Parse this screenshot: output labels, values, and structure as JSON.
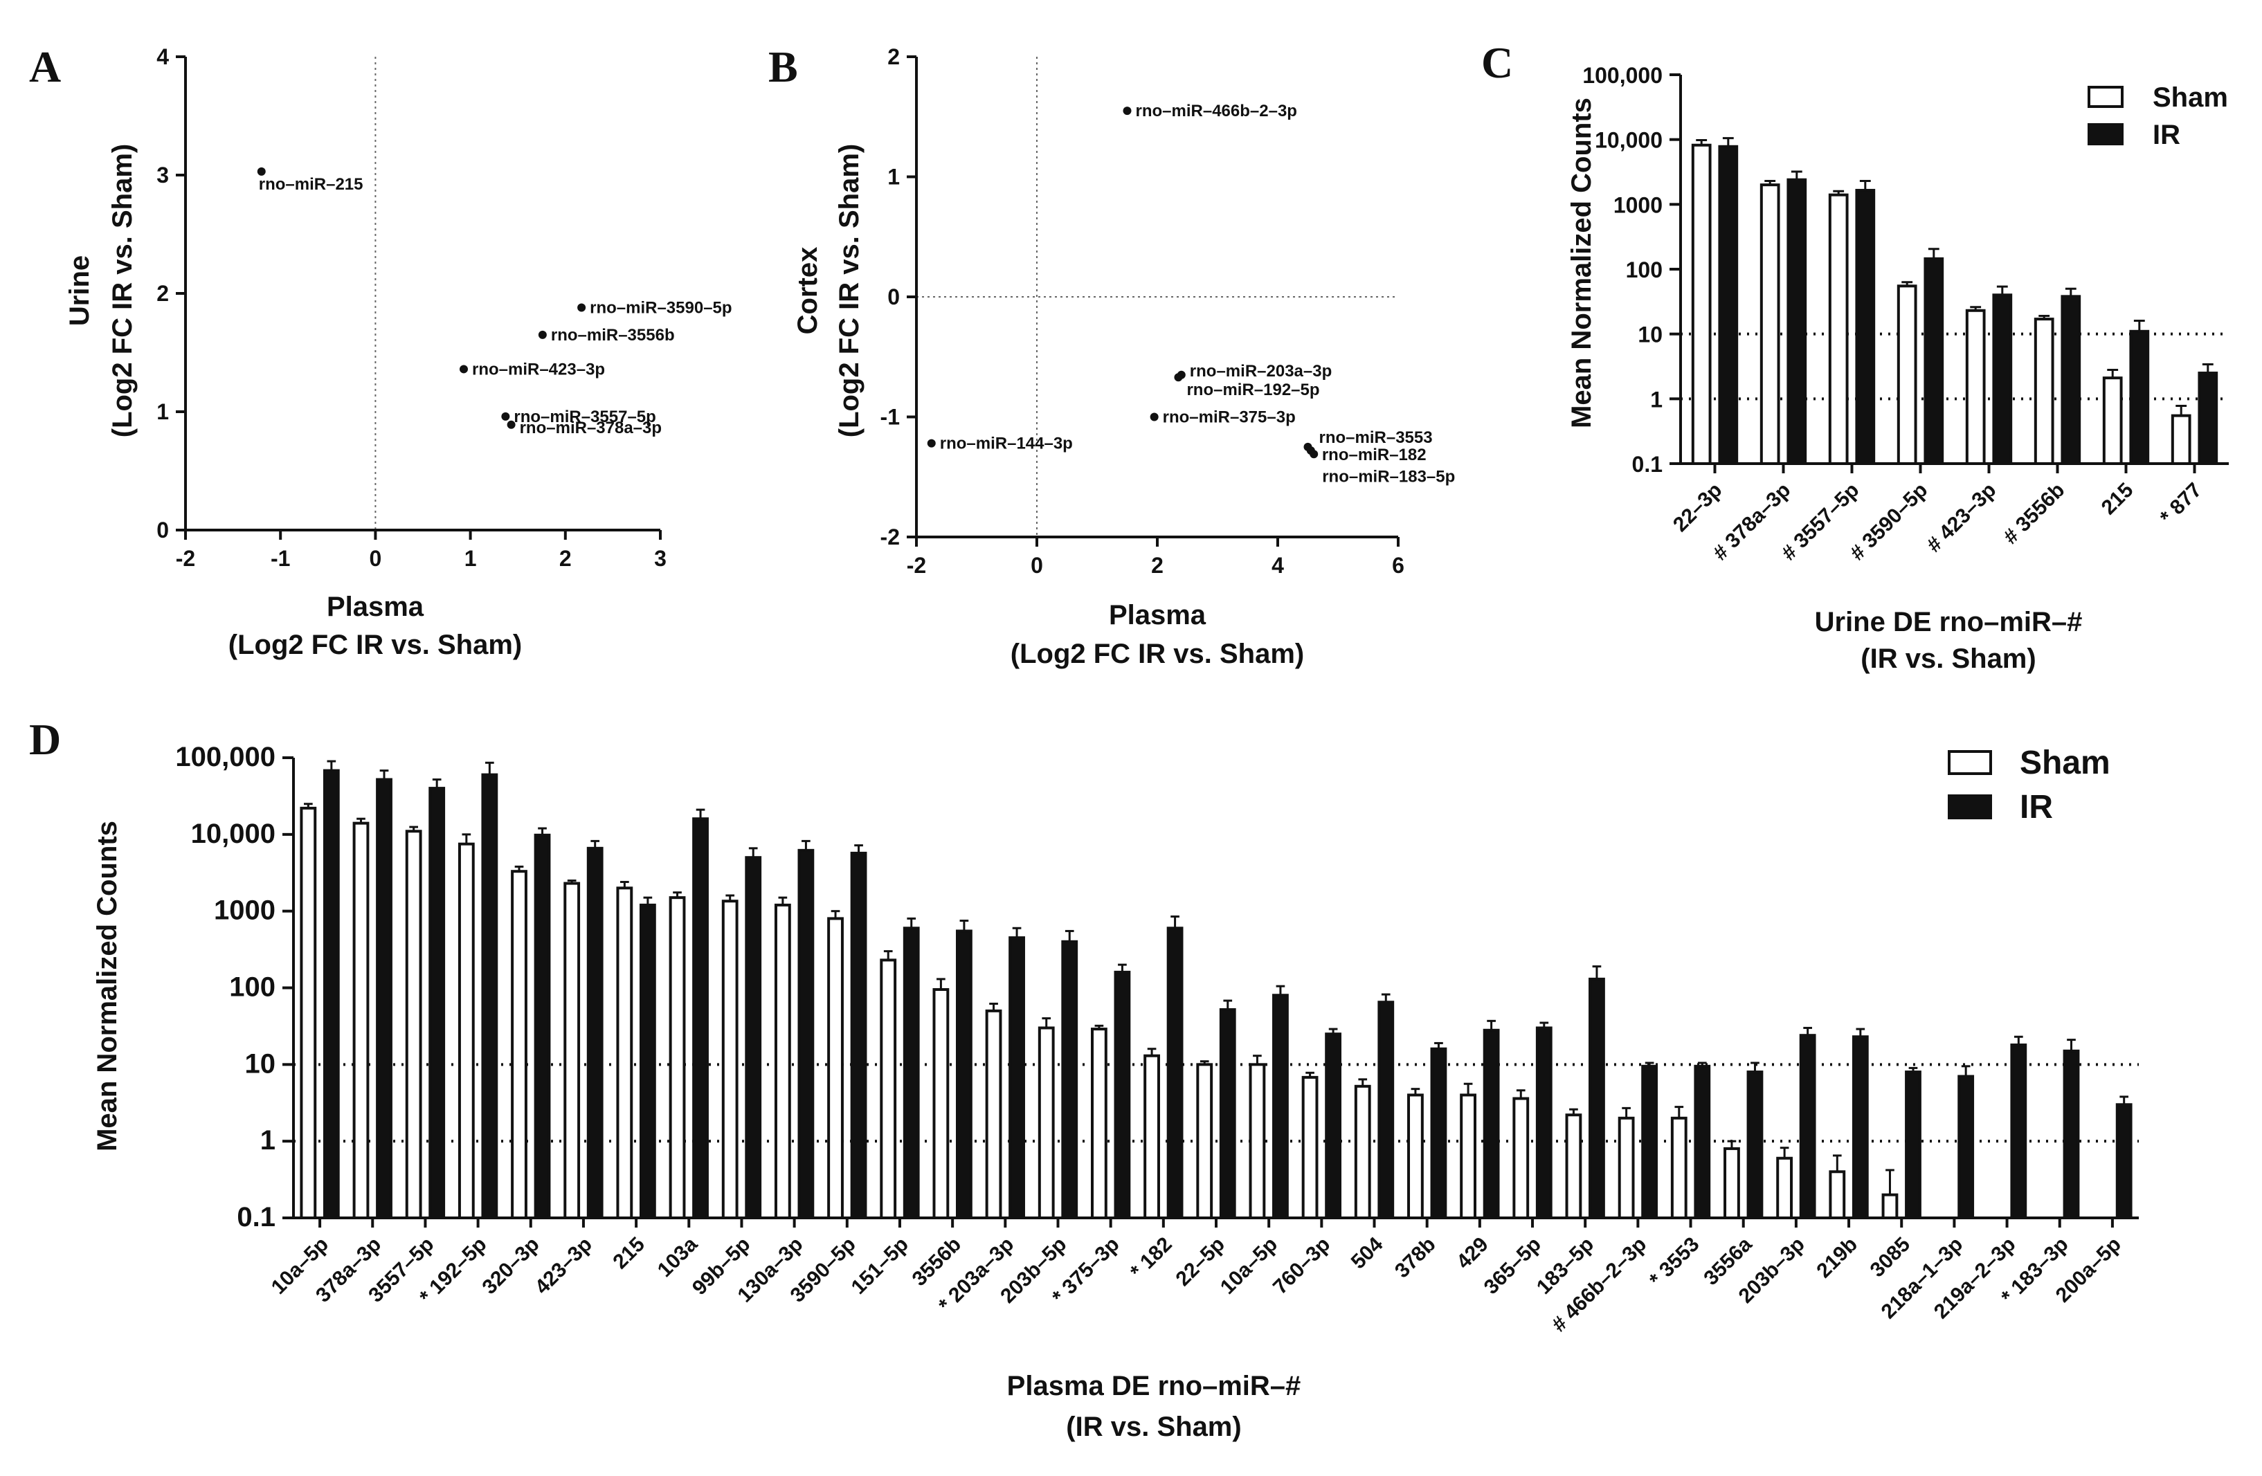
{
  "chart_data": [
    {
      "panel": "A",
      "type": "scatter",
      "xlabel": "Plasma",
      "xlabel2": "(Log2 FC IR vs. Sham)",
      "ylabel": "Urine",
      "ylabel2": "(Log2 FC IR vs. Sham)",
      "xlim": [
        -2,
        3
      ],
      "ylim": [
        0,
        4
      ],
      "xticks": [
        -2,
        -1,
        0,
        1,
        2,
        3
      ],
      "yticks": [
        0,
        1,
        2,
        3,
        4
      ],
      "points": [
        {
          "label": "rno–miR–215",
          "x": -1.2,
          "y": 3.03
        },
        {
          "label": "rno–miR–3590–5p",
          "x": 2.17,
          "y": 1.88
        },
        {
          "label": "rno–miR–3556b",
          "x": 1.76,
          "y": 1.65
        },
        {
          "label": "rno–miR–423–3p",
          "x": 0.93,
          "y": 1.36
        },
        {
          "label": "rno–miR–3557–5p",
          "x": 1.37,
          "y": 0.96
        },
        {
          "label": "rno–miR–378a–3p",
          "x": 1.43,
          "y": 0.89
        }
      ]
    },
    {
      "panel": "B",
      "type": "scatter",
      "xlabel": "Plasma",
      "xlabel2": "(Log2 FC IR vs. Sham)",
      "ylabel": "Cortex",
      "ylabel2": "(Log2 FC IR vs. Sham)",
      "xlim": [
        -2,
        6
      ],
      "ylim": [
        -2,
        2
      ],
      "xticks": [
        -2,
        0,
        2,
        4,
        6
      ],
      "yticks": [
        -2,
        -1,
        0,
        1,
        2
      ],
      "points": [
        {
          "label": "rno–miR–466b–2–3p",
          "x": 1.5,
          "y": 1.55
        },
        {
          "label": "rno–miR–203a–3p",
          "x": 2.4,
          "y": -0.65
        },
        {
          "label": "rno–miR–192–5p",
          "x": 2.35,
          "y": -0.67
        },
        {
          "label": "rno–miR–375–3p",
          "x": 1.95,
          "y": -1.0
        },
        {
          "label": "rno–miR–144–3p",
          "x": -1.75,
          "y": -1.22
        },
        {
          "label": "rno–miR–3553",
          "x": 4.5,
          "y": -1.25
        },
        {
          "label": "rno–miR–182",
          "x": 4.55,
          "y": -1.28
        },
        {
          "label": "rno–miR–183–5p",
          "x": 4.6,
          "y": -1.31
        }
      ]
    },
    {
      "panel": "C",
      "type": "bar",
      "scale": "log",
      "xlabel": "Urine DE rno–miR–#",
      "xlabel2": "(IR vs. Sham)",
      "ylabel": "Mean Normalized Counts",
      "ylim": [
        0.1,
        100000
      ],
      "yticks": [
        "0.1",
        "1",
        "10",
        "100",
        "1000",
        "10,000",
        "100,000"
      ],
      "reference_lines": [
        1,
        10
      ],
      "categories": [
        "22–3p",
        "# 378a–3p",
        "# 3557–5p",
        "# 3590–5p",
        "# 423–3p",
        "# 3556b",
        "215",
        "* 877"
      ],
      "series": [
        {
          "name": "Sham",
          "values": [
            8200,
            2000,
            1400,
            55,
            23,
            17,
            2.1,
            0.55
          ],
          "errors": [
            9800,
            2300,
            1600,
            63,
            26,
            19,
            2.8,
            0.78
          ]
        },
        {
          "name": "IR",
          "values": [
            7800,
            2400,
            1650,
            145,
            40,
            38,
            11,
            2.5
          ],
          "errors": [
            10500,
            3200,
            2300,
            205,
            54,
            50,
            16,
            3.4
          ]
        }
      ]
    },
    {
      "panel": "D",
      "type": "bar",
      "scale": "log",
      "xlabel": "Plasma DE rno–miR–#",
      "xlabel2": "(IR vs. Sham)",
      "ylabel": "Mean Normalized Counts",
      "ylim": [
        0.1,
        100000
      ],
      "yticks": [
        "0.1",
        "1",
        "10",
        "100",
        "1000",
        "10,000",
        "100,000"
      ],
      "reference_lines": [
        1,
        10
      ],
      "categories": [
        "10a–5p",
        "378a–3p",
        "3557–5p",
        "* 192–5p",
        "320–3p",
        "423–3p",
        "215",
        "103a",
        "99b–5p",
        "130a–3p",
        "3590–5p",
        "151–5p",
        "3556b",
        "* 203a–3p",
        "203b–5p",
        "* 375–3p",
        "* 182",
        "22–5p",
        "10a–5p",
        "760–3p",
        "504",
        "378b",
        "429",
        "365–5p",
        "183–5p",
        "# 466b–2–3p",
        "* 3553",
        "3556a",
        "203b–3p",
        "219b",
        "3085",
        "218a–1–3p",
        "219a–2–3p",
        "* 183–3p",
        "200a–5p"
      ],
      "series": [
        {
          "name": "Sham",
          "values": [
            22000,
            14000,
            11000,
            7500,
            3300,
            2300,
            2000,
            1500,
            1350,
            1200,
            800,
            230,
            95,
            50,
            30,
            29,
            13,
            10,
            10,
            6.8,
            5.2,
            4,
            4,
            3.6,
            2.2,
            2,
            2,
            0.8,
            0.6,
            0.4,
            0.2,
            null,
            null,
            null,
            null
          ],
          "errors": [
            25000,
            16000,
            12500,
            10000,
            3800,
            2500,
            2400,
            1750,
            1600,
            1500,
            1000,
            300,
            130,
            62,
            40,
            32,
            16,
            11,
            13,
            7.8,
            6.4,
            4.8,
            5.6,
            4.6,
            2.6,
            2.7,
            2.8,
            1.0,
            0.82,
            0.65,
            0.42,
            null,
            null,
            null,
            null
          ]
        },
        {
          "name": "IR",
          "values": [
            68000,
            52000,
            40000,
            60000,
            9800,
            6600,
            1200,
            16000,
            5000,
            6200,
            5700,
            600,
            550,
            450,
            400,
            160,
            600,
            52,
            80,
            25,
            65,
            16,
            28,
            30,
            130,
            9.5,
            9.5,
            8,
            24,
            23,
            8,
            7,
            18,
            15,
            3
          ],
          "errors": [
            90000,
            68000,
            52000,
            86000,
            12000,
            8200,
            1500,
            21000,
            6600,
            8200,
            7200,
            800,
            750,
            600,
            550,
            200,
            850,
            68,
            105,
            29,
            82,
            19,
            37,
            35,
            190,
            10.5,
            10.5,
            10.5,
            30,
            29,
            9,
            9.5,
            23,
            21,
            3.8
          ]
        }
      ]
    }
  ],
  "panel_letters": [
    "A",
    "B",
    "C",
    "D"
  ],
  "legend": {
    "sham": "Sham",
    "ir": "IR"
  }
}
